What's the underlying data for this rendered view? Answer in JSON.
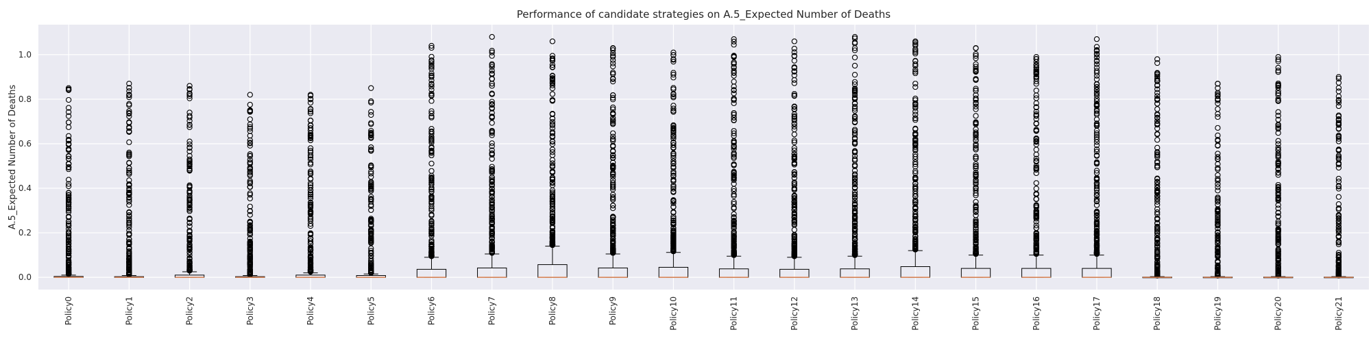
{
  "chart_data": {
    "type": "box",
    "title": "Performance of candidate strategies on A.5_Expected Number of Deaths",
    "xlabel": "",
    "ylabel": "A.5_Expected Number of Deaths",
    "ylim": [
      -0.055,
      1.135
    ],
    "yticks": [
      0.0,
      0.2,
      0.4,
      0.6,
      0.8,
      1.0
    ],
    "ytick_labels": [
      "0.0",
      "0.2",
      "0.4",
      "0.6",
      "0.8",
      "1.0"
    ],
    "grid": true,
    "legend": "none",
    "colors": {
      "background": "#eaeaf2",
      "grid": "#ffffff",
      "box": "#000000",
      "median": "#dd8452",
      "text": "#262626"
    },
    "categories": [
      "Policy0",
      "Policy1",
      "Policy2",
      "Policy3",
      "Policy4",
      "Policy5",
      "Policy6",
      "Policy7",
      "Policy8",
      "Policy9",
      "Policy10",
      "Policy11",
      "Policy12",
      "Policy13",
      "Policy14",
      "Policy15",
      "Policy16",
      "Policy17",
      "Policy18",
      "Policy19",
      "Policy20",
      "Policy21"
    ],
    "boxes": [
      {
        "q1": 0.0,
        "median": 0.0,
        "q3": 0.004,
        "whislo": 0.0,
        "whishi": 0.01,
        "max_outlier": 0.85
      },
      {
        "q1": 0.0,
        "median": 0.0,
        "q3": 0.003,
        "whislo": 0.0,
        "whishi": 0.008,
        "max_outlier": 0.87
      },
      {
        "q1": 0.0,
        "median": 0.0,
        "q3": 0.01,
        "whislo": 0.0,
        "whishi": 0.025,
        "max_outlier": 0.86
      },
      {
        "q1": 0.0,
        "median": 0.0,
        "q3": 0.003,
        "whislo": 0.0,
        "whishi": 0.008,
        "max_outlier": 0.82
      },
      {
        "q1": 0.0,
        "median": 0.0,
        "q3": 0.01,
        "whislo": 0.0,
        "whishi": 0.02,
        "max_outlier": 0.82
      },
      {
        "q1": 0.0,
        "median": 0.0,
        "q3": 0.008,
        "whislo": 0.0,
        "whishi": 0.015,
        "max_outlier": 0.85
      },
      {
        "q1": 0.0,
        "median": 0.0,
        "q3": 0.036,
        "whislo": 0.0,
        "whishi": 0.09,
        "max_outlier": 1.04
      },
      {
        "q1": 0.0,
        "median": 0.0,
        "q3": 0.042,
        "whislo": 0.0,
        "whishi": 0.105,
        "max_outlier": 1.08
      },
      {
        "q1": 0.0,
        "median": 0.0,
        "q3": 0.057,
        "whislo": 0.0,
        "whishi": 0.14,
        "max_outlier": 1.06
      },
      {
        "q1": 0.0,
        "median": 0.0,
        "q3": 0.042,
        "whislo": 0.0,
        "whishi": 0.105,
        "max_outlier": 1.03
      },
      {
        "q1": 0.0,
        "median": 0.0,
        "q3": 0.045,
        "whislo": 0.0,
        "whishi": 0.112,
        "max_outlier": 1.01
      },
      {
        "q1": 0.0,
        "median": 0.0,
        "q3": 0.038,
        "whislo": 0.0,
        "whishi": 0.095,
        "max_outlier": 1.07
      },
      {
        "q1": 0.0,
        "median": 0.0,
        "q3": 0.036,
        "whislo": 0.0,
        "whishi": 0.09,
        "max_outlier": 1.06
      },
      {
        "q1": 0.0,
        "median": 0.0,
        "q3": 0.038,
        "whislo": 0.0,
        "whishi": 0.095,
        "max_outlier": 1.08
      },
      {
        "q1": 0.0,
        "median": 0.0,
        "q3": 0.048,
        "whislo": 0.0,
        "whishi": 0.12,
        "max_outlier": 1.06
      },
      {
        "q1": 0.0,
        "median": 0.0,
        "q3": 0.04,
        "whislo": 0.0,
        "whishi": 0.1,
        "max_outlier": 1.03
      },
      {
        "q1": 0.0,
        "median": 0.0,
        "q3": 0.04,
        "whislo": 0.0,
        "whishi": 0.1,
        "max_outlier": 0.99
      },
      {
        "q1": 0.0,
        "median": 0.0,
        "q3": 0.04,
        "whislo": 0.0,
        "whishi": 0.1,
        "max_outlier": 1.07
      },
      {
        "q1": 0.0,
        "median": 0.0,
        "q3": 0.001,
        "whislo": 0.0,
        "whishi": 0.003,
        "max_outlier": 0.98
      },
      {
        "q1": 0.0,
        "median": 0.0,
        "q3": 0.001,
        "whislo": 0.0,
        "whishi": 0.003,
        "max_outlier": 0.87
      },
      {
        "q1": 0.0,
        "median": 0.0,
        "q3": 0.001,
        "whislo": 0.0,
        "whishi": 0.003,
        "max_outlier": 0.99
      },
      {
        "q1": 0.0,
        "median": 0.0,
        "q3": 0.001,
        "whislo": 0.0,
        "whishi": 0.003,
        "max_outlier": 0.9
      }
    ]
  }
}
